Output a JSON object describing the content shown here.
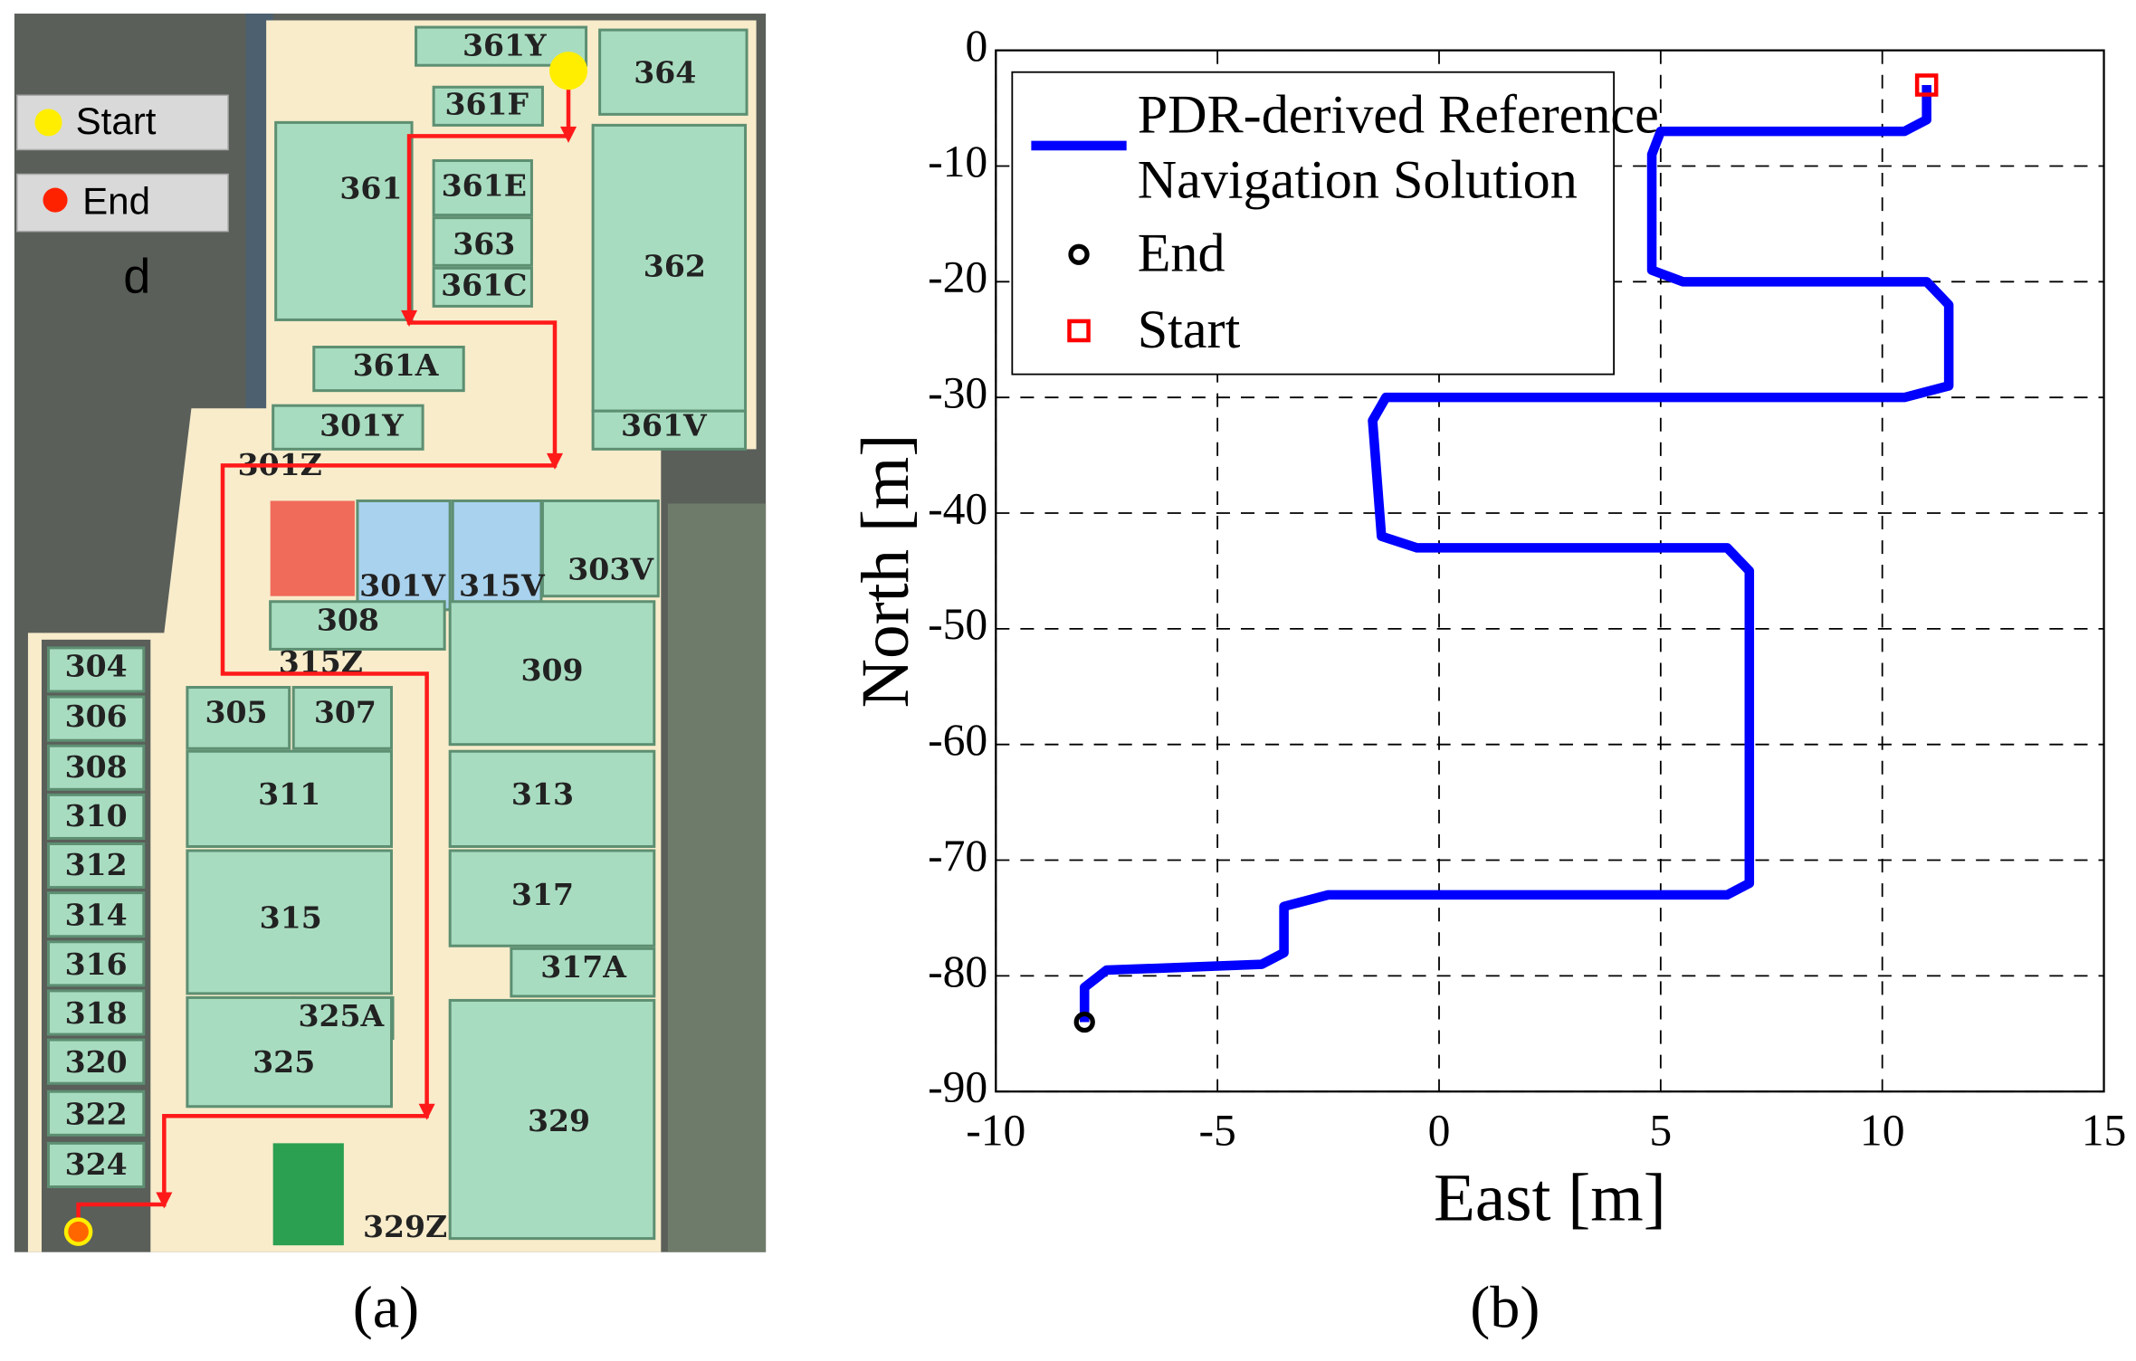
{
  "chart_data": {
    "type": "line",
    "caption": "(b)",
    "xlabel": "East [m]",
    "ylabel": "North [m]",
    "xlim": [
      -10,
      15
    ],
    "xticks": [
      -10,
      -5,
      0,
      5,
      10,
      15
    ],
    "ylim": [
      -90,
      0
    ],
    "yticks": [
      0,
      -10,
      -20,
      -30,
      -40,
      -50,
      -60,
      -70,
      -80,
      -90
    ],
    "grid": true,
    "legend": "upper left",
    "series": [
      {
        "name": "PDR-derived Reference Navigation Solution",
        "color": "#0000ff",
        "marker": "none",
        "x": [
          11,
          11,
          10.5,
          5,
          4.8,
          4.8,
          5.5,
          11,
          11.5,
          11.5,
          10.5,
          -1.2,
          -1.5,
          -1.3,
          -0.5,
          6.5,
          7,
          7,
          6.5,
          -2.5,
          -3.5,
          -3.5,
          -4,
          -6,
          -7.5,
          -8,
          -8
        ],
        "y": [
          -3,
          -6,
          -7,
          -7,
          -9,
          -19,
          -20,
          -20,
          -22,
          -29,
          -30,
          -30,
          -32,
          -42,
          -43,
          -43,
          -45,
          -72,
          -73,
          -73,
          -74,
          -78,
          -79,
          -79.3,
          -79.5,
          -81,
          -84
        ]
      },
      {
        "name": "End",
        "color": "#000000",
        "marker": "circle",
        "x": [
          -8
        ],
        "y": [
          -84
        ]
      },
      {
        "name": "Start",
        "color": "#ff0000",
        "marker": "square",
        "x": [
          11
        ],
        "y": [
          -3
        ]
      }
    ]
  },
  "floor_plan": {
    "caption": "(a)",
    "legend": [
      "Start",
      "End"
    ],
    "mark": "d",
    "rooms": [
      "361Y",
      "364",
      "361F",
      "361",
      "361E",
      "363",
      "362",
      "361C",
      "361A",
      "301Y",
      "361V",
      "301Z",
      "301V",
      "315V",
      "303V",
      "308",
      "315Z",
      "309",
      "304",
      "306",
      "305",
      "307",
      "308",
      "310",
      "311",
      "313",
      "312",
      "314",
      "315",
      "317",
      "316",
      "317A",
      "318",
      "325A",
      "320",
      "325",
      "322",
      "329",
      "324",
      "329Z"
    ]
  }
}
